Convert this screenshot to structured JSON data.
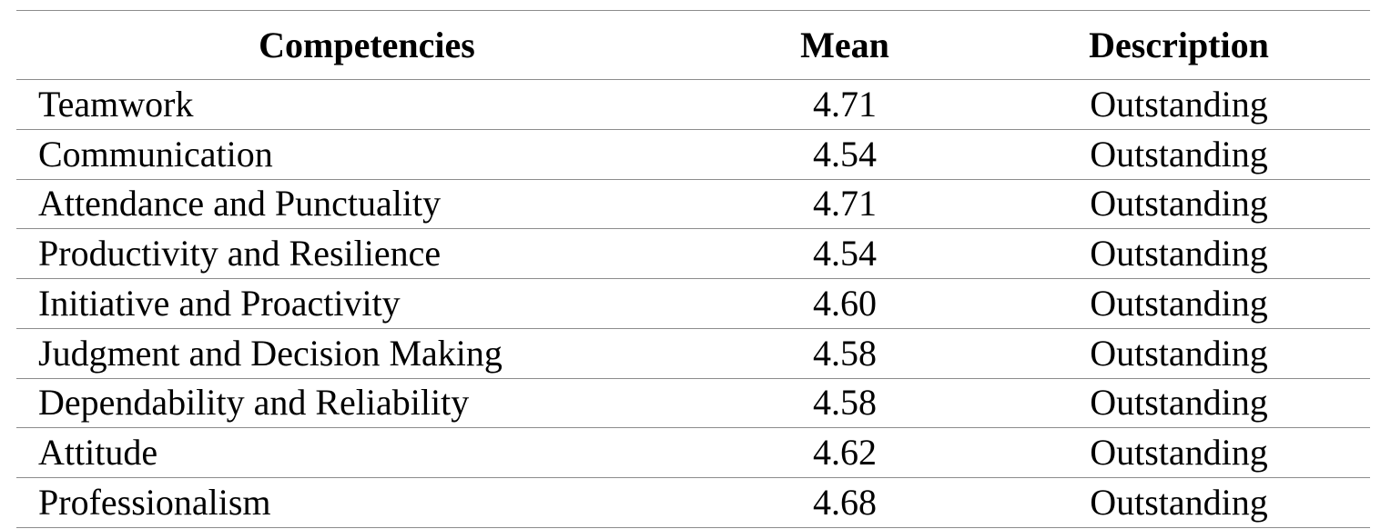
{
  "table": {
    "header": [
      "Competencies",
      "Mean",
      "Description"
    ],
    "rows": [
      [
        "Teamwork",
        "4.71",
        "Outstanding"
      ],
      [
        "Communication",
        "4.54",
        "Outstanding"
      ],
      [
        "Attendance and Punctuality",
        "4.71",
        "Outstanding"
      ],
      [
        "Productivity and Resilience",
        "4.54",
        "Outstanding"
      ],
      [
        "Initiative and Proactivity",
        "4.60",
        "Outstanding"
      ],
      [
        "Judgment and Decision Making",
        "4.58",
        "Outstanding"
      ],
      [
        "Dependability and Reliability",
        "4.58",
        "Outstanding"
      ],
      [
        "Attitude",
        "4.62",
        "Outstanding"
      ],
      [
        "Professionalism",
        "4.68",
        "Outstanding"
      ]
    ]
  }
}
